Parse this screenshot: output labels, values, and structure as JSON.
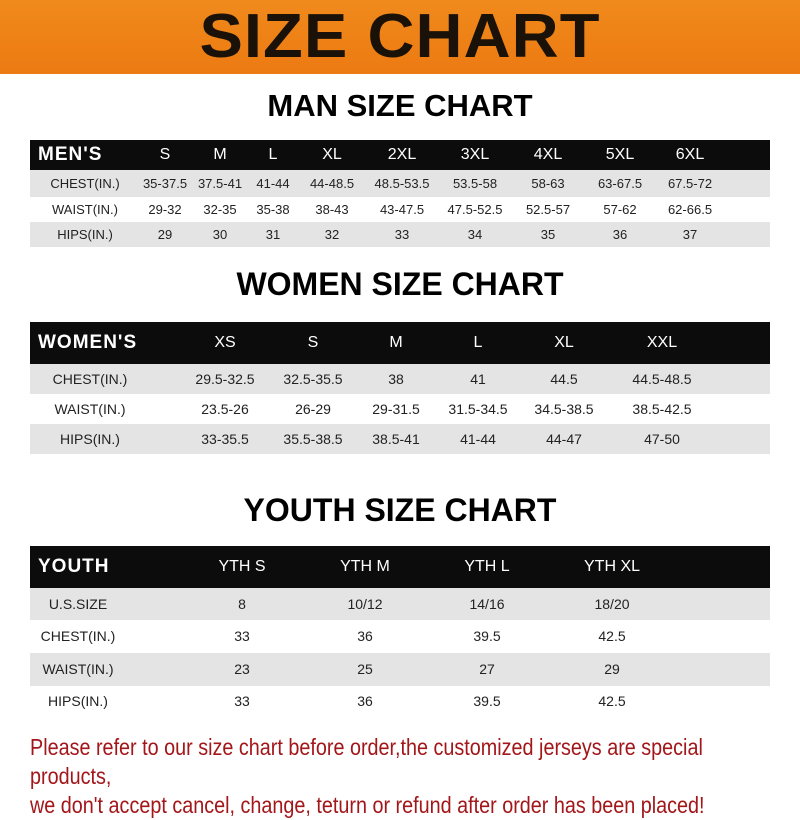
{
  "banner": {
    "title": "SIZE CHART"
  },
  "men": {
    "title": "MAN SIZE CHART",
    "header": [
      "MEN'S",
      "S",
      "M",
      "L",
      "XL",
      "2XL",
      "3XL",
      "4XL",
      "5XL",
      "6XL"
    ],
    "rows": [
      [
        "CHEST(IN.)",
        "35-37.5",
        "37.5-41",
        "41-44",
        "44-48.5",
        "48.5-53.5",
        "53.5-58",
        "58-63",
        "63-67.5",
        "67.5-72"
      ],
      [
        "WAIST(IN.)",
        "29-32",
        "32-35",
        "35-38",
        "38-43",
        "43-47.5",
        "47.5-52.5",
        "52.5-57",
        "57-62",
        "62-66.5"
      ],
      [
        "HIPS(IN.)",
        "29",
        "30",
        "31",
        "32",
        "33",
        "34",
        "35",
        "36",
        "37"
      ]
    ]
  },
  "women": {
    "title": "WOMEN SIZE CHART",
    "header": [
      "WOMEN'S",
      "XS",
      "S",
      "M",
      "L",
      "XL",
      "XXL"
    ],
    "rows": [
      [
        "CHEST(IN.)",
        "29.5-32.5",
        "32.5-35.5",
        "38",
        "41",
        "44.5",
        "44.5-48.5"
      ],
      [
        "WAIST(IN.)",
        "23.5-26",
        "26-29",
        "29-31.5",
        "31.5-34.5",
        "34.5-38.5",
        "38.5-42.5"
      ],
      [
        "HIPS(IN.)",
        "33-35.5",
        "35.5-38.5",
        "38.5-41",
        "41-44",
        "44-47",
        "47-50"
      ]
    ]
  },
  "youth": {
    "title": "YOUTH SIZE CHART",
    "header": [
      "YOUTH",
      "YTH S",
      "YTH M",
      "YTH L",
      "YTH XL"
    ],
    "rows": [
      [
        "U.S.SIZE",
        "8",
        "10/12",
        "14/16",
        "18/20"
      ],
      [
        "CHEST(IN.)",
        "33",
        "36",
        "39.5",
        "42.5"
      ],
      [
        "WAIST(IN.)",
        "23",
        "25",
        "27",
        "29"
      ],
      [
        "HIPS(IN.)",
        "33",
        "36",
        "39.5",
        "42.5"
      ]
    ]
  },
  "note": {
    "line1": "Please refer to our size chart before order,the customized jerseys are special products,",
    "line2": "we don't accept cancel, change, teturn or refund after order has been placed!"
  },
  "colors": {
    "banner": "#ec7a12",
    "header_row": "#0c0c0c",
    "stripe": "#e4e4e4",
    "note": "#a3161a"
  }
}
